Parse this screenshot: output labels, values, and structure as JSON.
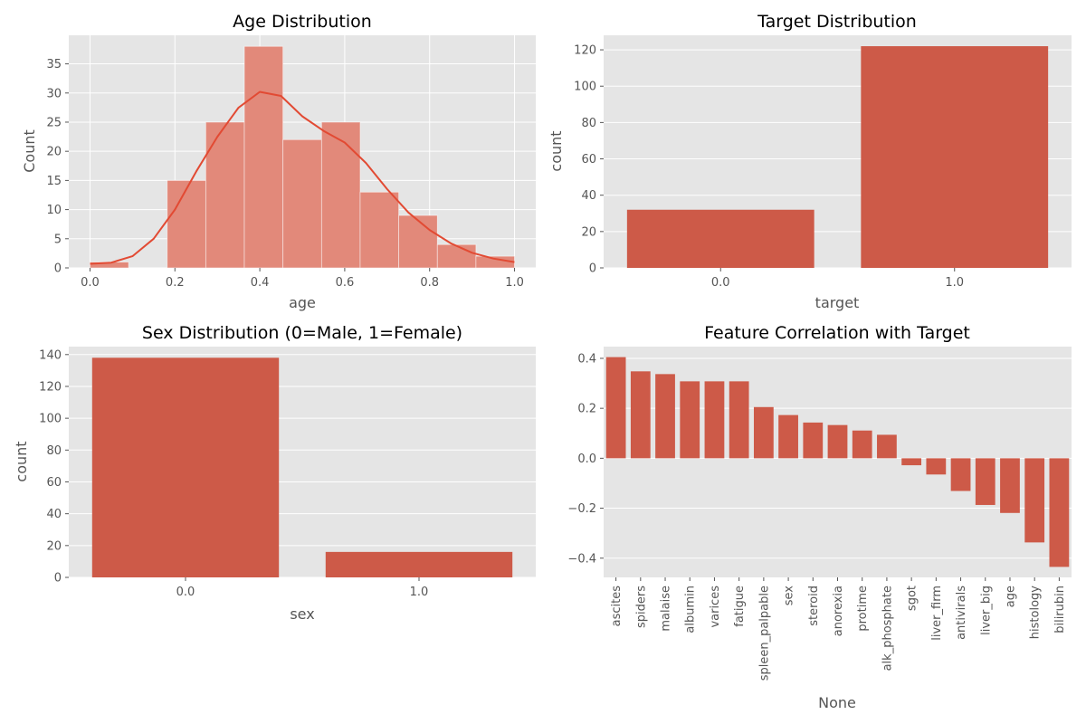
{
  "chart_data": [
    {
      "type": "bar",
      "subtype": "histogram",
      "title": "Age Distribution",
      "xlabel": "age",
      "ylabel": "Count",
      "bins": [
        {
          "start": 0.0,
          "end": 0.0909,
          "count": 1
        },
        {
          "start": 0.0909,
          "end": 0.1818,
          "count": 0
        },
        {
          "start": 0.1818,
          "end": 0.2727,
          "count": 15
        },
        {
          "start": 0.2727,
          "end": 0.3636,
          "count": 25
        },
        {
          "start": 0.3636,
          "end": 0.4545,
          "count": 38
        },
        {
          "start": 0.4545,
          "end": 0.5455,
          "count": 22
        },
        {
          "start": 0.5455,
          "end": 0.6364,
          "count": 25
        },
        {
          "start": 0.6364,
          "end": 0.7273,
          "count": 13
        },
        {
          "start": 0.7273,
          "end": 0.8182,
          "count": 9
        },
        {
          "start": 0.8182,
          "end": 0.9091,
          "count": 4
        },
        {
          "start": 0.9091,
          "end": 1.0,
          "count": 2
        }
      ],
      "kde": {
        "x": [
          0.0,
          0.05,
          0.1,
          0.15,
          0.2,
          0.25,
          0.3,
          0.35,
          0.4,
          0.45,
          0.5,
          0.55,
          0.6,
          0.65,
          0.7,
          0.75,
          0.8,
          0.85,
          0.9,
          0.95,
          1.0
        ],
        "y": [
          0.7,
          0.9,
          2.0,
          5.0,
          10.0,
          16.5,
          22.5,
          27.5,
          30.2,
          29.5,
          26.0,
          23.5,
          21.5,
          18.0,
          13.5,
          9.5,
          6.5,
          4.2,
          2.6,
          1.6,
          1.0
        ]
      },
      "xlim": [
        -0.05,
        1.05
      ],
      "ylim": [
        0,
        39.9
      ],
      "xticks": [
        0.0,
        0.2,
        0.4,
        0.6,
        0.8,
        1.0
      ],
      "xtick_labels": [
        "0.0",
        "0.2",
        "0.4",
        "0.6",
        "0.8",
        "1.0"
      ],
      "yticks": [
        0,
        5,
        10,
        15,
        20,
        25,
        30,
        35
      ],
      "ytick_labels": [
        "0",
        "5",
        "10",
        "15",
        "20",
        "25",
        "30",
        "35"
      ],
      "bar_color": "#E2897A",
      "line_color": "#E24A33",
      "grid": true
    },
    {
      "type": "bar",
      "title": "Target Distribution",
      "xlabel": "target",
      "ylabel": "count",
      "categories": [
        "0.0",
        "1.0"
      ],
      "values": [
        32,
        122
      ],
      "ylim": [
        0,
        128
      ],
      "yticks": [
        0,
        20,
        40,
        60,
        80,
        100,
        120
      ],
      "ytick_labels": [
        "0",
        "20",
        "40",
        "60",
        "80",
        "100",
        "120"
      ],
      "bar_color": "#CD5A48",
      "grid": true
    },
    {
      "type": "bar",
      "title": "Sex Distribution (0=Male, 1=Female)",
      "xlabel": "sex",
      "ylabel": "count",
      "categories": [
        "0.0",
        "1.0"
      ],
      "values": [
        138,
        16
      ],
      "ylim": [
        0,
        145
      ],
      "yticks": [
        0,
        20,
        40,
        60,
        80,
        100,
        120,
        140
      ],
      "ytick_labels": [
        "0",
        "20",
        "40",
        "60",
        "80",
        "100",
        "120",
        "140"
      ],
      "bar_color": "#CD5A48",
      "grid": true
    },
    {
      "type": "bar",
      "title": "Feature Correlation with Target",
      "xlabel": "None",
      "ylabel": "",
      "categories": [
        "ascites",
        "spiders",
        "malaise",
        "albumin",
        "varices",
        "fatigue",
        "spleen_palpable",
        "sex",
        "steroid",
        "anorexia",
        "protime",
        "alk_phosphate",
        "sgot",
        "liver_firm",
        "antivirals",
        "liver_big",
        "age",
        "histology",
        "bilirubin"
      ],
      "values": [
        0.405,
        0.348,
        0.337,
        0.308,
        0.308,
        0.308,
        0.205,
        0.173,
        0.143,
        0.133,
        0.111,
        0.094,
        -0.028,
        -0.065,
        -0.131,
        -0.187,
        -0.219,
        -0.337,
        -0.435
      ],
      "ylim": [
        -0.477,
        0.447
      ],
      "yticks": [
        -0.4,
        -0.2,
        0.0,
        0.2,
        0.4
      ],
      "ytick_labels": [
        "−0.4",
        "−0.2",
        "0.0",
        "0.2",
        "0.4"
      ],
      "bar_color": "#CD5A48",
      "grid": true
    }
  ],
  "style": {
    "figure_background": "#FFFFFF",
    "axes_background": "#E5E5E5",
    "grid_color": "#FFFFFF",
    "text_color": "#555555",
    "title_color": "#000000"
  }
}
